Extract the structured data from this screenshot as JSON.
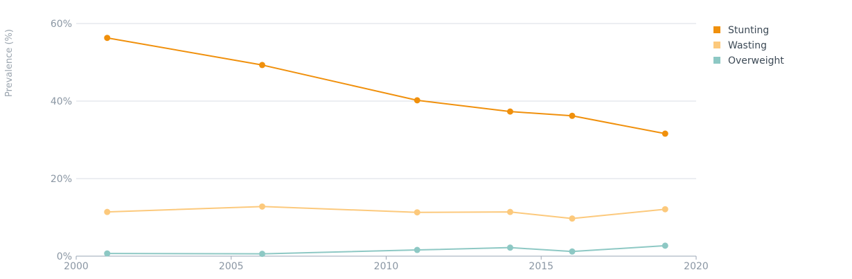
{
  "chart_data": {
    "type": "line",
    "ylabel": "Prevalence (%)",
    "xlim": [
      2000,
      2020
    ],
    "ylim": [
      0,
      60
    ],
    "x_ticks": [
      "2000",
      "2005",
      "2010",
      "2015",
      "2020"
    ],
    "y_ticks": [
      "0%",
      "20%",
      "40%",
      "60%"
    ],
    "grid": "horizontal",
    "legend": "top-right",
    "series": [
      {
        "name": "Stunting",
        "color": "#f0900c",
        "points": [
          [
            2001,
            56.3
          ],
          [
            2006,
            49.3
          ],
          [
            2011,
            40.2
          ],
          [
            2014,
            37.3
          ],
          [
            2016,
            36.2
          ],
          [
            2019,
            31.6
          ]
        ]
      },
      {
        "name": "Wasting",
        "color": "#fcc97c",
        "points": [
          [
            2001,
            11.4
          ],
          [
            2006,
            12.8
          ],
          [
            2011,
            11.3
          ],
          [
            2014,
            11.4
          ],
          [
            2016,
            9.7
          ],
          [
            2019,
            12.1
          ]
        ]
      },
      {
        "name": "Overweight",
        "color": "#8dc8c4",
        "points": [
          [
            2001,
            0.7
          ],
          [
            2006,
            0.6
          ],
          [
            2011,
            1.6
          ],
          [
            2014,
            2.2
          ],
          [
            2016,
            1.2
          ],
          [
            2019,
            2.7
          ]
        ]
      }
    ]
  }
}
